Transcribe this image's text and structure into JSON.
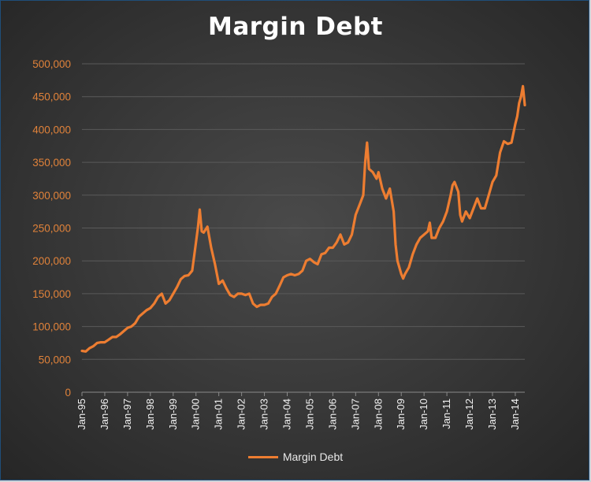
{
  "chart_data": {
    "type": "line",
    "title": "Margin Debt",
    "xlabel": "",
    "ylabel": "",
    "ylim": [
      0,
      500000
    ],
    "yticks": [
      "0",
      "50,000",
      "100,000",
      "150,000",
      "200,000",
      "250,000",
      "300,000",
      "350,000",
      "400,000",
      "450,000",
      "500,000"
    ],
    "xticks": [
      "Jan-95",
      "Jan-96",
      "Jan-97",
      "Jan-98",
      "Jan-99",
      "Jan-00",
      "Jan-01",
      "Jan-02",
      "Jan-03",
      "Jan-04",
      "Jan-05",
      "Jan-06",
      "Jan-07",
      "Jan-08",
      "Jan-09",
      "Jan-10",
      "Jan-11",
      "Jan-12",
      "Jan-13",
      "Jan-14"
    ],
    "grid": true,
    "legend_position": "bottom",
    "colors": {
      "series": "#ed7d31",
      "axis_tick_text": "#e0823a",
      "grid": "#5a5a5a"
    },
    "series": [
      {
        "name": "Margin Debt",
        "x": [
          "1995-01",
          "1995-03",
          "1995-05",
          "1995-07",
          "1995-09",
          "1995-11",
          "1996-01",
          "1996-03",
          "1996-05",
          "1996-07",
          "1996-09",
          "1996-11",
          "1997-01",
          "1997-03",
          "1997-05",
          "1997-07",
          "1997-09",
          "1997-11",
          "1998-01",
          "1998-03",
          "1998-05",
          "1998-07",
          "1998-09",
          "1998-11",
          "1999-01",
          "1999-03",
          "1999-05",
          "1999-07",
          "1999-09",
          "1999-11",
          "2000-01",
          "2000-02",
          "2000-03",
          "2000-04",
          "2000-05",
          "2000-07",
          "2000-09",
          "2000-11",
          "2001-01",
          "2001-03",
          "2001-05",
          "2001-07",
          "2001-09",
          "2001-11",
          "2002-01",
          "2002-03",
          "2002-05",
          "2002-07",
          "2002-09",
          "2002-11",
          "2003-01",
          "2003-03",
          "2003-05",
          "2003-07",
          "2003-09",
          "2003-11",
          "2004-01",
          "2004-03",
          "2004-05",
          "2004-07",
          "2004-09",
          "2004-11",
          "2005-01",
          "2005-03",
          "2005-05",
          "2005-07",
          "2005-09",
          "2005-11",
          "2006-01",
          "2006-03",
          "2006-05",
          "2006-07",
          "2006-09",
          "2006-11",
          "2007-01",
          "2007-03",
          "2007-05",
          "2007-06",
          "2007-07",
          "2007-08",
          "2007-10",
          "2007-12",
          "2008-01",
          "2008-03",
          "2008-05",
          "2008-07",
          "2008-09",
          "2008-10",
          "2008-11",
          "2009-01",
          "2009-02",
          "2009-03",
          "2009-05",
          "2009-07",
          "2009-09",
          "2009-11",
          "2010-01",
          "2010-03",
          "2010-04",
          "2010-05",
          "2010-07",
          "2010-09",
          "2010-11",
          "2011-01",
          "2011-03",
          "2011-04",
          "2011-05",
          "2011-07",
          "2011-08",
          "2011-09",
          "2011-11",
          "2012-01",
          "2012-03",
          "2012-05",
          "2012-07",
          "2012-09",
          "2012-11",
          "2013-01",
          "2013-03",
          "2013-05",
          "2013-07",
          "2013-09",
          "2013-11",
          "2014-01",
          "2014-02",
          "2014-03",
          "2014-04",
          "2014-05",
          "2014-06"
        ],
        "values": [
          63000,
          62000,
          67000,
          70000,
          75000,
          76000,
          76000,
          80000,
          84000,
          84000,
          88000,
          93000,
          98000,
          100000,
          105000,
          115000,
          120000,
          125000,
          128000,
          135000,
          145000,
          150000,
          135000,
          140000,
          150000,
          160000,
          172000,
          177000,
          178000,
          185000,
          228000,
          250000,
          278000,
          245000,
          243000,
          252000,
          220000,
          195000,
          165000,
          170000,
          158000,
          148000,
          145000,
          150000,
          150000,
          148000,
          150000,
          135000,
          130000,
          133000,
          133000,
          135000,
          145000,
          150000,
          162000,
          175000,
          178000,
          180000,
          178000,
          180000,
          185000,
          200000,
          203000,
          198000,
          195000,
          210000,
          212000,
          220000,
          220000,
          228000,
          240000,
          225000,
          228000,
          240000,
          270000,
          285000,
          300000,
          350000,
          380000,
          340000,
          335000,
          325000,
          335000,
          310000,
          295000,
          310000,
          275000,
          225000,
          200000,
          180000,
          173000,
          180000,
          190000,
          210000,
          225000,
          235000,
          240000,
          245000,
          258000,
          235000,
          235000,
          250000,
          260000,
          275000,
          300000,
          315000,
          320000,
          305000,
          270000,
          260000,
          275000,
          265000,
          280000,
          295000,
          280000,
          280000,
          300000,
          320000,
          330000,
          365000,
          382000,
          378000,
          380000,
          408000,
          420000,
          440000,
          450000,
          466000,
          437000
        ]
      }
    ]
  }
}
